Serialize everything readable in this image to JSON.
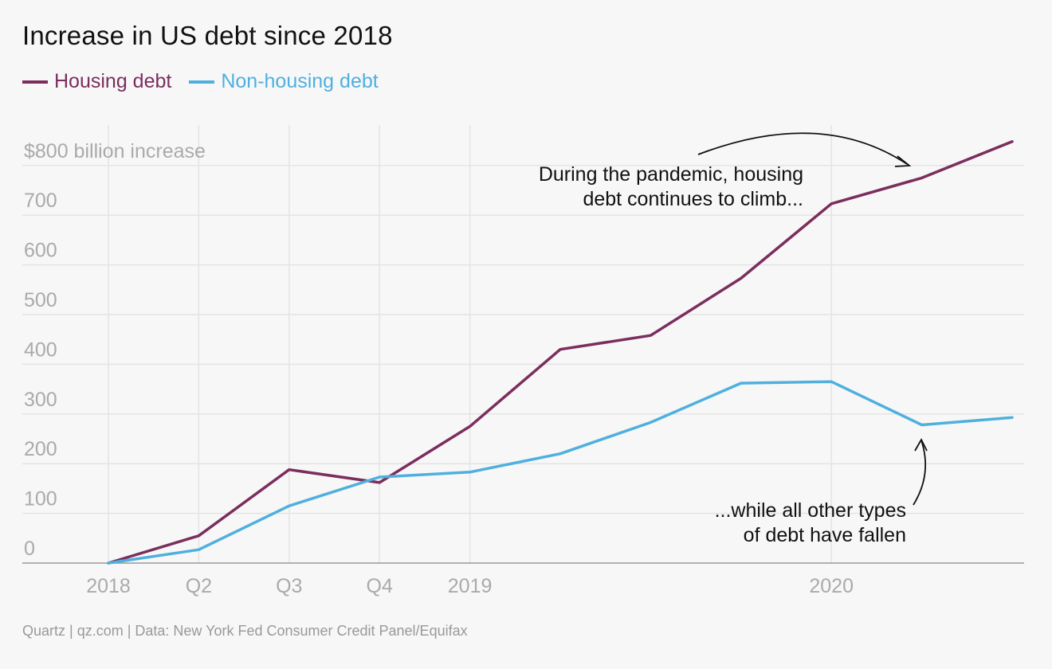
{
  "header": {
    "title": "Increase in US debt since 2018",
    "legend": [
      {
        "label": "Housing debt",
        "color": "#7b2e5e"
      },
      {
        "label": "Non-housing debt",
        "color": "#4fb0de"
      }
    ]
  },
  "footer": {
    "source": "Quartz | qz.com | Data: New York Fed Consumer Credit Panel/Equifax"
  },
  "chart_data": {
    "type": "line",
    "title": "Increase in US debt since 2018",
    "xlabel": "",
    "ylabel": "",
    "x": [
      "2018 Q1",
      "2018 Q2",
      "2018 Q3",
      "2018 Q4",
      "2019 Q1",
      "2019 Q2",
      "2019 Q3",
      "2019 Q4",
      "2020 Q1",
      "2020 Q2",
      "2020 Q3"
    ],
    "x_tick_labels": [
      "2018",
      "Q2",
      "Q3",
      "Q4",
      "2019",
      "",
      "",
      "",
      "2020",
      "",
      ""
    ],
    "y_tick_labels": [
      "0",
      "100",
      "200",
      "300",
      "400",
      "500",
      "600",
      "700",
      "$800 billion increase"
    ],
    "y_ticks": [
      0,
      100,
      200,
      300,
      400,
      500,
      600,
      700,
      800
    ],
    "ylim": [
      0,
      850
    ],
    "grid": true,
    "legend_position": "top-left",
    "series": [
      {
        "name": "Housing debt",
        "color": "#7b2e5e",
        "values": [
          0,
          55,
          188,
          162,
          275,
          430,
          458,
          573,
          723,
          775,
          848
        ]
      },
      {
        "name": "Non-housing debt",
        "color": "#4fb0de",
        "values": [
          0,
          27,
          115,
          173,
          183,
          220,
          283,
          362,
          365,
          278,
          293
        ]
      }
    ],
    "annotations": [
      {
        "lines": [
          "During the pandemic, housing",
          "debt continues to climb..."
        ]
      },
      {
        "lines": [
          "...while all other types",
          "of debt have fallen"
        ]
      }
    ]
  }
}
